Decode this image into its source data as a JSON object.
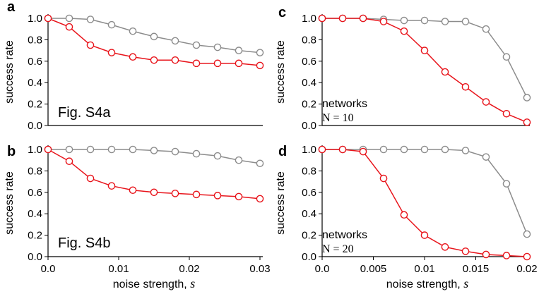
{
  "colors": {
    "red": "#e8141b",
    "gray": "#8c8c8c",
    "axis": "#000000"
  },
  "chart_data": [
    {
      "panel": "a",
      "type": "line",
      "ylabel": "success rate",
      "xlabel": "",
      "annotation": "Fig. S4a",
      "xlim": [
        0,
        0.03
      ],
      "ylim": [
        0,
        1
      ],
      "xticks": [],
      "xtick_labels": [],
      "yticks": [
        0,
        0.2,
        0.4,
        0.6,
        0.8,
        1.0
      ],
      "ytick_labels": [
        "0.0",
        "0.2",
        "0.4",
        "0.6",
        "0.8",
        "1.0"
      ],
      "x": [
        0,
        0.003,
        0.006,
        0.009,
        0.012,
        0.015,
        0.018,
        0.021,
        0.024,
        0.027,
        0.03
      ],
      "series": [
        {
          "name": "gray",
          "color": "gray",
          "values": [
            1.0,
            1.0,
            0.99,
            0.94,
            0.88,
            0.83,
            0.79,
            0.75,
            0.73,
            0.7,
            0.68
          ]
        },
        {
          "name": "red",
          "color": "red",
          "values": [
            1.0,
            0.92,
            0.75,
            0.68,
            0.64,
            0.61,
            0.61,
            0.58,
            0.58,
            0.58,
            0.56
          ]
        }
      ]
    },
    {
      "panel": "b",
      "type": "line",
      "ylabel": "success rate",
      "xlabel": "noise strength,",
      "xlabel_var": "s",
      "annotation": "Fig. S4b",
      "xlim": [
        0,
        0.03
      ],
      "ylim": [
        0,
        1
      ],
      "xticks": [
        0,
        0.01,
        0.02,
        0.03
      ],
      "xtick_labels": [
        "0.0",
        "0.01",
        "0.02",
        "0.03"
      ],
      "yticks": [
        0,
        0.2,
        0.4,
        0.6,
        0.8,
        1.0
      ],
      "ytick_labels": [
        "0.0",
        "0.2",
        "0.4",
        "0.6",
        "0.8",
        "1.0"
      ],
      "x": [
        0,
        0.003,
        0.006,
        0.009,
        0.012,
        0.015,
        0.018,
        0.021,
        0.024,
        0.027,
        0.03
      ],
      "series": [
        {
          "name": "gray",
          "color": "gray",
          "values": [
            1.0,
            1.0,
            1.0,
            1.0,
            1.0,
            0.99,
            0.98,
            0.96,
            0.94,
            0.9,
            0.87
          ]
        },
        {
          "name": "red",
          "color": "red",
          "values": [
            1.0,
            0.89,
            0.73,
            0.66,
            0.62,
            0.6,
            0.59,
            0.58,
            0.57,
            0.56,
            0.54
          ]
        }
      ]
    },
    {
      "panel": "c",
      "type": "line",
      "ylabel": "success rate",
      "xlabel": "",
      "annotation": "networks",
      "annotation2": "N = 10",
      "xlim": [
        0,
        0.02
      ],
      "ylim": [
        0,
        1
      ],
      "xticks": [],
      "xtick_labels": [],
      "yticks": [
        0,
        0.2,
        0.4,
        0.6,
        0.8,
        1.0
      ],
      "ytick_labels": [
        "0.0",
        "0.2",
        "0.4",
        "0.6",
        "0.8",
        "1.0"
      ],
      "x": [
        0,
        0.002,
        0.004,
        0.006,
        0.008,
        0.01,
        0.012,
        0.014,
        0.016,
        0.018,
        0.02
      ],
      "series": [
        {
          "name": "gray",
          "color": "gray",
          "values": [
            1.0,
            1.0,
            1.0,
            0.99,
            0.98,
            0.98,
            0.97,
            0.97,
            0.9,
            0.64,
            0.26
          ]
        },
        {
          "name": "red",
          "color": "red",
          "values": [
            1.0,
            1.0,
            1.0,
            0.97,
            0.88,
            0.7,
            0.5,
            0.36,
            0.22,
            0.11,
            0.03
          ]
        }
      ]
    },
    {
      "panel": "d",
      "type": "line",
      "ylabel": "success rate",
      "xlabel": "noise strength,",
      "xlabel_var": "s",
      "annotation": "networks",
      "annotation2": "N = 20",
      "xlim": [
        0,
        0.02
      ],
      "ylim": [
        0,
        1
      ],
      "xticks": [
        0,
        0.005,
        0.01,
        0.015,
        0.02
      ],
      "xtick_labels": [
        "0.0",
        "0.005",
        "0.01",
        "0.015",
        "0.02"
      ],
      "yticks": [
        0,
        0.2,
        0.4,
        0.6,
        0.8,
        1.0
      ],
      "ytick_labels": [
        "0.0",
        "0.2",
        "0.4",
        "0.6",
        "0.8",
        "1.0"
      ],
      "x": [
        0,
        0.002,
        0.004,
        0.006,
        0.008,
        0.01,
        0.012,
        0.014,
        0.016,
        0.018,
        0.02
      ],
      "series": [
        {
          "name": "gray",
          "color": "gray",
          "values": [
            1.0,
            1.0,
            1.0,
            1.0,
            1.0,
            1.0,
            1.0,
            0.99,
            0.93,
            0.68,
            0.21
          ]
        },
        {
          "name": "red",
          "color": "red",
          "values": [
            1.0,
            1.0,
            0.98,
            0.73,
            0.39,
            0.2,
            0.09,
            0.05,
            0.02,
            0.01,
            0.0
          ]
        }
      ]
    }
  ]
}
